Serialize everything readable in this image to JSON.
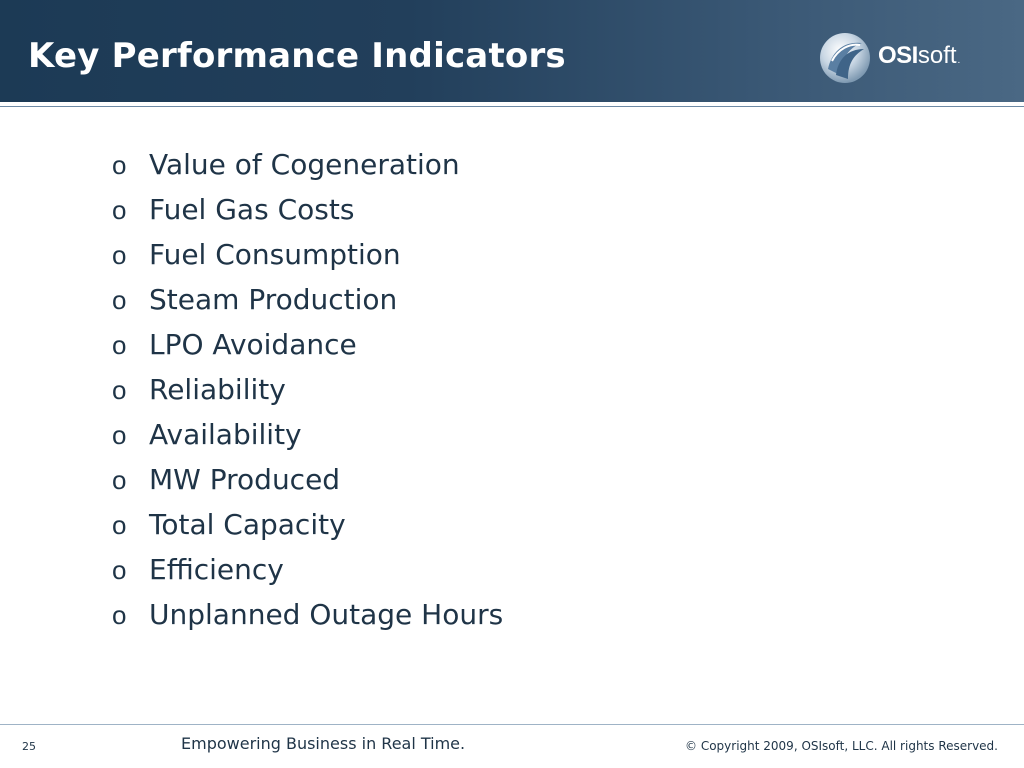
{
  "header": {
    "title": "Key Performance Indicators",
    "logo": {
      "icon": "osisoft-swirl-icon",
      "text_bold": "OSI",
      "text_light": "soft",
      "text_mark": "."
    },
    "colors": {
      "background": "#223f5b",
      "title": "#ffffff"
    }
  },
  "bullets": {
    "marker": "o",
    "items": [
      "Value of Cogeneration",
      "Fuel Gas Costs",
      "Fuel Consumption",
      "Steam Production",
      "LPO Avoidance",
      "Reliability",
      "Availability",
      "MW Produced",
      "Total Capacity",
      "Efficiency",
      "Unplanned Outage Hours"
    ]
  },
  "footer": {
    "page_number": "25",
    "tagline": "Empowering Business in Real Time.",
    "copyright": "© Copyright 2009, OSIsoft, LLC.  All rights Reserved."
  }
}
